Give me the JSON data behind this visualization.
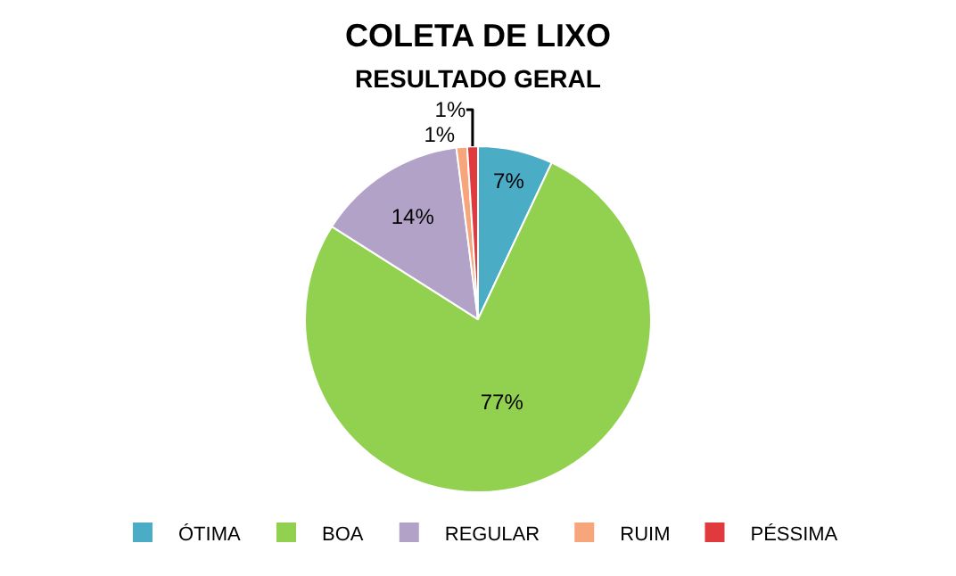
{
  "chart_data": {
    "type": "pie",
    "title": "COLETA DE LIXO",
    "subtitle": "RESULTADO GERAL",
    "categories": [
      "ÓTIMA",
      "BOA",
      "REGULAR",
      "RUIM",
      "PÉSSIMA"
    ],
    "values": [
      7,
      77,
      14,
      1,
      1
    ],
    "colors": [
      "#4bacc6",
      "#92d050",
      "#b3a2c7",
      "#f7a57a",
      "#e0393e"
    ],
    "value_labels": [
      "7%",
      "77%",
      "14%",
      "1%",
      "1%"
    ],
    "legend": "bottom"
  }
}
